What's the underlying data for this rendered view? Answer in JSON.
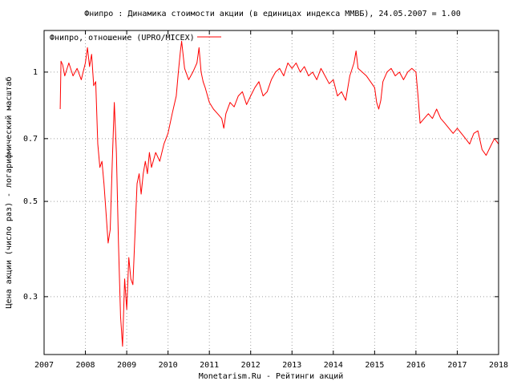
{
  "chart_data": {
    "type": "line",
    "title": "Фнипро : Динамика стоимости акции (в единицах индекса ММВБ), 24.05.2007 = 1.00",
    "xlabel": "Monetarism.Ru - Рейтинги акций",
    "ylabel": "Цена акции (число раз) - логарифмический масштаб",
    "y_scale": "log",
    "grid": true,
    "legend_position": "top-left",
    "xlim": [
      2007.0,
      2018.0
    ],
    "ylim": [
      0.22,
      1.25
    ],
    "x_ticks": [
      2007,
      2008,
      2009,
      2010,
      2011,
      2012,
      2013,
      2014,
      2015,
      2016,
      2017,
      2018
    ],
    "x_tick_labels": [
      "2007",
      "2008",
      "2009",
      "2010",
      "2011",
      "2012",
      "2013",
      "2014",
      "2015",
      "2016",
      "2017",
      "2018"
    ],
    "y_ticks": [
      0.3,
      0.5,
      0.7,
      1.0
    ],
    "y_tick_labels": [
      "0.3",
      "0.5",
      "0.7",
      "1"
    ],
    "series": [
      {
        "name": "Фнипро, отношение (UPRO/MICEX)",
        "color": "#ff0000",
        "points": [
          [
            2007.39,
            0.82
          ],
          [
            2007.41,
            1.06
          ],
          [
            2007.45,
            1.04
          ],
          [
            2007.5,
            0.98
          ],
          [
            2007.6,
            1.05
          ],
          [
            2007.7,
            0.98
          ],
          [
            2007.8,
            1.02
          ],
          [
            2007.9,
            0.96
          ],
          [
            2008.0,
            1.05
          ],
          [
            2008.05,
            1.14
          ],
          [
            2008.1,
            1.03
          ],
          [
            2008.15,
            1.1
          ],
          [
            2008.2,
            0.93
          ],
          [
            2008.25,
            0.95
          ],
          [
            2008.3,
            0.68
          ],
          [
            2008.35,
            0.6
          ],
          [
            2008.4,
            0.62
          ],
          [
            2008.45,
            0.55
          ],
          [
            2008.5,
            0.47
          ],
          [
            2008.55,
            0.4
          ],
          [
            2008.6,
            0.43
          ],
          [
            2008.65,
            0.62
          ],
          [
            2008.7,
            0.85
          ],
          [
            2008.75,
            0.65
          ],
          [
            2008.8,
            0.4
          ],
          [
            2008.85,
            0.27
          ],
          [
            2008.9,
            0.23
          ],
          [
            2008.95,
            0.33
          ],
          [
            2009.0,
            0.28
          ],
          [
            2009.05,
            0.37
          ],
          [
            2009.1,
            0.33
          ],
          [
            2009.15,
            0.32
          ],
          [
            2009.2,
            0.42
          ],
          [
            2009.25,
            0.55
          ],
          [
            2009.3,
            0.58
          ],
          [
            2009.35,
            0.52
          ],
          [
            2009.4,
            0.58
          ],
          [
            2009.45,
            0.62
          ],
          [
            2009.5,
            0.58
          ],
          [
            2009.55,
            0.65
          ],
          [
            2009.6,
            0.6
          ],
          [
            2009.7,
            0.65
          ],
          [
            2009.8,
            0.62
          ],
          [
            2009.9,
            0.68
          ],
          [
            2010.0,
            0.72
          ],
          [
            2010.1,
            0.8
          ],
          [
            2010.2,
            0.88
          ],
          [
            2010.25,
            1.0
          ],
          [
            2010.3,
            1.12
          ],
          [
            2010.33,
            1.18
          ],
          [
            2010.4,
            1.02
          ],
          [
            2010.5,
            0.96
          ],
          [
            2010.6,
            1.0
          ],
          [
            2010.7,
            1.05
          ],
          [
            2010.75,
            1.14
          ],
          [
            2010.8,
            1.0
          ],
          [
            2010.85,
            0.95
          ],
          [
            2010.9,
            0.92
          ],
          [
            2011.0,
            0.85
          ],
          [
            2011.1,
            0.82
          ],
          [
            2011.2,
            0.8
          ],
          [
            2011.3,
            0.78
          ],
          [
            2011.35,
            0.74
          ],
          [
            2011.4,
            0.8
          ],
          [
            2011.5,
            0.85
          ],
          [
            2011.6,
            0.83
          ],
          [
            2011.7,
            0.88
          ],
          [
            2011.8,
            0.9
          ],
          [
            2011.9,
            0.84
          ],
          [
            2012.0,
            0.88
          ],
          [
            2012.1,
            0.92
          ],
          [
            2012.2,
            0.95
          ],
          [
            2012.3,
            0.88
          ],
          [
            2012.4,
            0.9
          ],
          [
            2012.5,
            0.96
          ],
          [
            2012.6,
            1.0
          ],
          [
            2012.7,
            1.02
          ],
          [
            2012.8,
            0.98
          ],
          [
            2012.9,
            1.05
          ],
          [
            2013.0,
            1.02
          ],
          [
            2013.1,
            1.05
          ],
          [
            2013.2,
            1.0
          ],
          [
            2013.3,
            1.03
          ],
          [
            2013.4,
            0.98
          ],
          [
            2013.5,
            1.0
          ],
          [
            2013.6,
            0.96
          ],
          [
            2013.7,
            1.02
          ],
          [
            2013.8,
            0.98
          ],
          [
            2013.9,
            0.94
          ],
          [
            2014.0,
            0.96
          ],
          [
            2014.1,
            0.88
          ],
          [
            2014.2,
            0.9
          ],
          [
            2014.3,
            0.86
          ],
          [
            2014.4,
            0.98
          ],
          [
            2014.5,
            1.05
          ],
          [
            2014.55,
            1.12
          ],
          [
            2014.6,
            1.02
          ],
          [
            2014.7,
            1.0
          ],
          [
            2014.8,
            0.98
          ],
          [
            2014.9,
            0.95
          ],
          [
            2015.0,
            0.92
          ],
          [
            2015.05,
            0.85
          ],
          [
            2015.1,
            0.82
          ],
          [
            2015.15,
            0.86
          ],
          [
            2015.2,
            0.95
          ],
          [
            2015.3,
            1.0
          ],
          [
            2015.4,
            1.02
          ],
          [
            2015.5,
            0.98
          ],
          [
            2015.6,
            1.0
          ],
          [
            2015.7,
            0.96
          ],
          [
            2015.8,
            1.0
          ],
          [
            2015.9,
            1.02
          ],
          [
            2016.0,
            1.0
          ],
          [
            2016.05,
            0.88
          ],
          [
            2016.1,
            0.76
          ],
          [
            2016.2,
            0.78
          ],
          [
            2016.3,
            0.8
          ],
          [
            2016.4,
            0.78
          ],
          [
            2016.5,
            0.82
          ],
          [
            2016.6,
            0.78
          ],
          [
            2016.7,
            0.76
          ],
          [
            2016.8,
            0.74
          ],
          [
            2016.9,
            0.72
          ],
          [
            2017.0,
            0.74
          ],
          [
            2017.1,
            0.72
          ],
          [
            2017.2,
            0.7
          ],
          [
            2017.3,
            0.68
          ],
          [
            2017.4,
            0.72
          ],
          [
            2017.5,
            0.73
          ],
          [
            2017.6,
            0.66
          ],
          [
            2017.7,
            0.64
          ],
          [
            2017.8,
            0.67
          ],
          [
            2017.9,
            0.7
          ],
          [
            2017.95,
            0.69
          ],
          [
            2018.0,
            0.68
          ]
        ]
      }
    ]
  }
}
